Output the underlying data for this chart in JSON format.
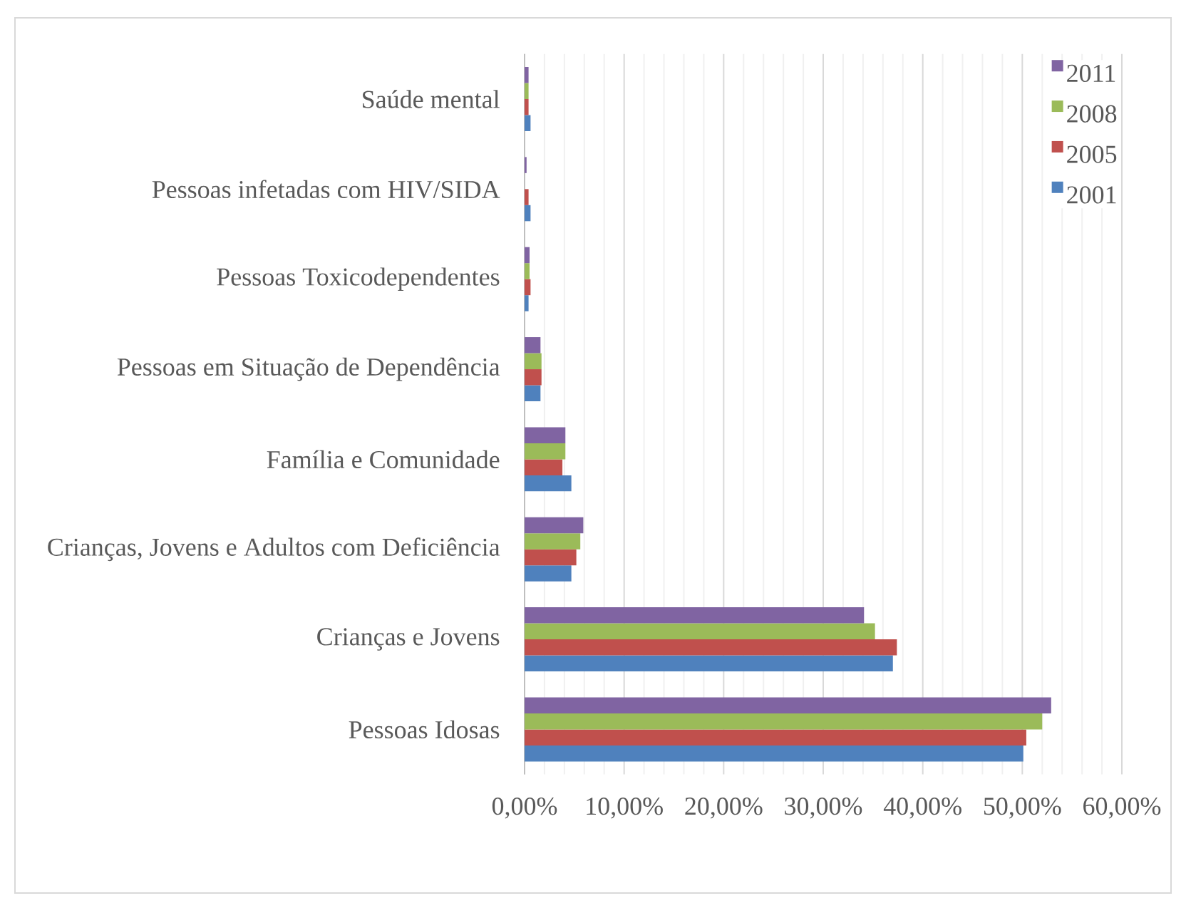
{
  "chart_data": {
    "type": "bar",
    "orientation": "horizontal",
    "categories": [
      "Saúde mental",
      "Pessoas infetadas com HIV/SIDA",
      "Pessoas Toxicodependentes",
      "Pessoas em Situação de Dependência",
      "Família e Comunidade",
      "Crianças, Jovens e Adultos com Deficiência",
      "Crianças e Jovens",
      "Pessoas Idosas"
    ],
    "series": [
      {
        "name": "2001",
        "color": "#4f81bd",
        "values": [
          0.6,
          0.6,
          0.4,
          1.6,
          4.7,
          4.7,
          37.0,
          50.1
        ]
      },
      {
        "name": "2005",
        "color": "#c0504d",
        "values": [
          0.4,
          0.4,
          0.6,
          1.7,
          3.8,
          5.2,
          37.4,
          50.4
        ]
      },
      {
        "name": "2008",
        "color": "#9bbb59",
        "values": [
          0.4,
          null,
          0.5,
          1.7,
          4.1,
          5.6,
          35.2,
          52.0
        ]
      },
      {
        "name": "2011",
        "color": "#8064a2",
        "values": [
          0.4,
          0.2,
          0.5,
          1.6,
          4.1,
          5.9,
          34.1,
          52.9
        ]
      }
    ],
    "xlim": [
      0,
      60
    ],
    "xticks": [
      {
        "value": 0,
        "label": "0,00%"
      },
      {
        "value": 10,
        "label": "10,00%"
      },
      {
        "value": 20,
        "label": "20,00%"
      },
      {
        "value": 30,
        "label": "30,00%"
      },
      {
        "value": 40,
        "label": "40,00%"
      },
      {
        "value": 50,
        "label": "50,00%"
      },
      {
        "value": 60,
        "label": "60,00%"
      }
    ],
    "grid": "x",
    "legend": "top right"
  }
}
